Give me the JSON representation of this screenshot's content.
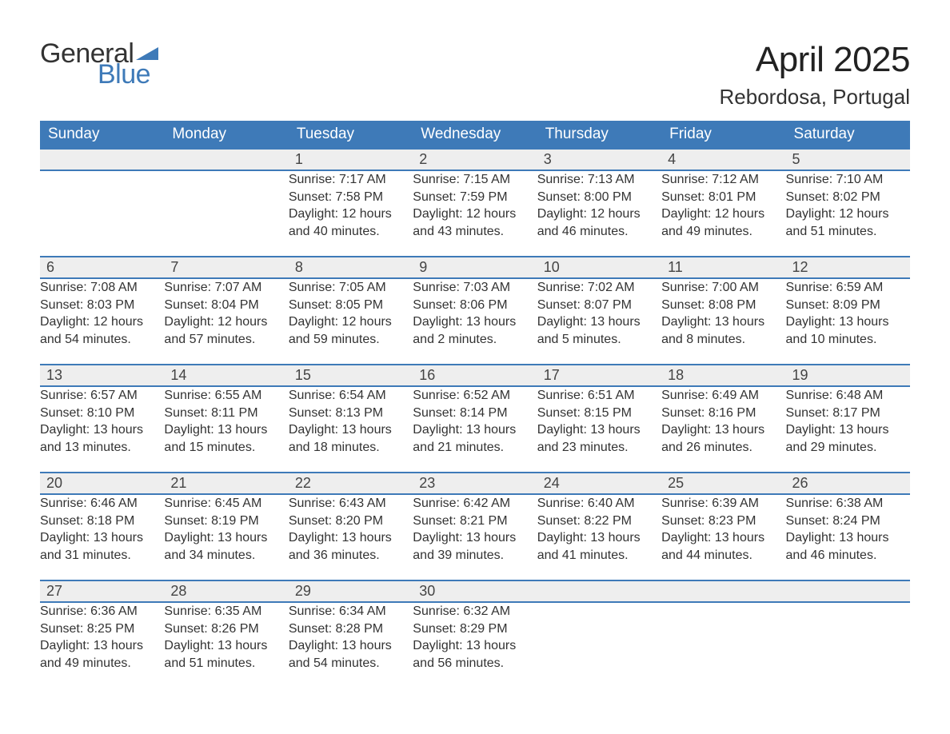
{
  "brand": {
    "word1": "General",
    "word2": "Blue",
    "accent_color": "#3e7ab8",
    "text_color": "#333333"
  },
  "header": {
    "month_title": "April 2025",
    "location": "Rebordosa, Portugal"
  },
  "colors": {
    "header_bg": "#3e7ab8",
    "header_text": "#ffffff",
    "daynum_bg": "#eeeeee",
    "body_text": "#333333",
    "rule": "#3e7ab8",
    "page_bg": "#ffffff"
  },
  "weekdays": [
    "Sunday",
    "Monday",
    "Tuesday",
    "Wednesday",
    "Thursday",
    "Friday",
    "Saturday"
  ],
  "weeks": [
    {
      "days": [
        {
          "num": "",
          "sunrise": "",
          "sunset": "",
          "daylight": ""
        },
        {
          "num": "",
          "sunrise": "",
          "sunset": "",
          "daylight": ""
        },
        {
          "num": "1",
          "sunrise": "Sunrise: 7:17 AM",
          "sunset": "Sunset: 7:58 PM",
          "daylight": "Daylight: 12 hours and 40 minutes."
        },
        {
          "num": "2",
          "sunrise": "Sunrise: 7:15 AM",
          "sunset": "Sunset: 7:59 PM",
          "daylight": "Daylight: 12 hours and 43 minutes."
        },
        {
          "num": "3",
          "sunrise": "Sunrise: 7:13 AM",
          "sunset": "Sunset: 8:00 PM",
          "daylight": "Daylight: 12 hours and 46 minutes."
        },
        {
          "num": "4",
          "sunrise": "Sunrise: 7:12 AM",
          "sunset": "Sunset: 8:01 PM",
          "daylight": "Daylight: 12 hours and 49 minutes."
        },
        {
          "num": "5",
          "sunrise": "Sunrise: 7:10 AM",
          "sunset": "Sunset: 8:02 PM",
          "daylight": "Daylight: 12 hours and 51 minutes."
        }
      ]
    },
    {
      "days": [
        {
          "num": "6",
          "sunrise": "Sunrise: 7:08 AM",
          "sunset": "Sunset: 8:03 PM",
          "daylight": "Daylight: 12 hours and 54 minutes."
        },
        {
          "num": "7",
          "sunrise": "Sunrise: 7:07 AM",
          "sunset": "Sunset: 8:04 PM",
          "daylight": "Daylight: 12 hours and 57 minutes."
        },
        {
          "num": "8",
          "sunrise": "Sunrise: 7:05 AM",
          "sunset": "Sunset: 8:05 PM",
          "daylight": "Daylight: 12 hours and 59 minutes."
        },
        {
          "num": "9",
          "sunrise": "Sunrise: 7:03 AM",
          "sunset": "Sunset: 8:06 PM",
          "daylight": "Daylight: 13 hours and 2 minutes."
        },
        {
          "num": "10",
          "sunrise": "Sunrise: 7:02 AM",
          "sunset": "Sunset: 8:07 PM",
          "daylight": "Daylight: 13 hours and 5 minutes."
        },
        {
          "num": "11",
          "sunrise": "Sunrise: 7:00 AM",
          "sunset": "Sunset: 8:08 PM",
          "daylight": "Daylight: 13 hours and 8 minutes."
        },
        {
          "num": "12",
          "sunrise": "Sunrise: 6:59 AM",
          "sunset": "Sunset: 8:09 PM",
          "daylight": "Daylight: 13 hours and 10 minutes."
        }
      ]
    },
    {
      "days": [
        {
          "num": "13",
          "sunrise": "Sunrise: 6:57 AM",
          "sunset": "Sunset: 8:10 PM",
          "daylight": "Daylight: 13 hours and 13 minutes."
        },
        {
          "num": "14",
          "sunrise": "Sunrise: 6:55 AM",
          "sunset": "Sunset: 8:11 PM",
          "daylight": "Daylight: 13 hours and 15 minutes."
        },
        {
          "num": "15",
          "sunrise": "Sunrise: 6:54 AM",
          "sunset": "Sunset: 8:13 PM",
          "daylight": "Daylight: 13 hours and 18 minutes."
        },
        {
          "num": "16",
          "sunrise": "Sunrise: 6:52 AM",
          "sunset": "Sunset: 8:14 PM",
          "daylight": "Daylight: 13 hours and 21 minutes."
        },
        {
          "num": "17",
          "sunrise": "Sunrise: 6:51 AM",
          "sunset": "Sunset: 8:15 PM",
          "daylight": "Daylight: 13 hours and 23 minutes."
        },
        {
          "num": "18",
          "sunrise": "Sunrise: 6:49 AM",
          "sunset": "Sunset: 8:16 PM",
          "daylight": "Daylight: 13 hours and 26 minutes."
        },
        {
          "num": "19",
          "sunrise": "Sunrise: 6:48 AM",
          "sunset": "Sunset: 8:17 PM",
          "daylight": "Daylight: 13 hours and 29 minutes."
        }
      ]
    },
    {
      "days": [
        {
          "num": "20",
          "sunrise": "Sunrise: 6:46 AM",
          "sunset": "Sunset: 8:18 PM",
          "daylight": "Daylight: 13 hours and 31 minutes."
        },
        {
          "num": "21",
          "sunrise": "Sunrise: 6:45 AM",
          "sunset": "Sunset: 8:19 PM",
          "daylight": "Daylight: 13 hours and 34 minutes."
        },
        {
          "num": "22",
          "sunrise": "Sunrise: 6:43 AM",
          "sunset": "Sunset: 8:20 PM",
          "daylight": "Daylight: 13 hours and 36 minutes."
        },
        {
          "num": "23",
          "sunrise": "Sunrise: 6:42 AM",
          "sunset": "Sunset: 8:21 PM",
          "daylight": "Daylight: 13 hours and 39 minutes."
        },
        {
          "num": "24",
          "sunrise": "Sunrise: 6:40 AM",
          "sunset": "Sunset: 8:22 PM",
          "daylight": "Daylight: 13 hours and 41 minutes."
        },
        {
          "num": "25",
          "sunrise": "Sunrise: 6:39 AM",
          "sunset": "Sunset: 8:23 PM",
          "daylight": "Daylight: 13 hours and 44 minutes."
        },
        {
          "num": "26",
          "sunrise": "Sunrise: 6:38 AM",
          "sunset": "Sunset: 8:24 PM",
          "daylight": "Daylight: 13 hours and 46 minutes."
        }
      ]
    },
    {
      "days": [
        {
          "num": "27",
          "sunrise": "Sunrise: 6:36 AM",
          "sunset": "Sunset: 8:25 PM",
          "daylight": "Daylight: 13 hours and 49 minutes."
        },
        {
          "num": "28",
          "sunrise": "Sunrise: 6:35 AM",
          "sunset": "Sunset: 8:26 PM",
          "daylight": "Daylight: 13 hours and 51 minutes."
        },
        {
          "num": "29",
          "sunrise": "Sunrise: 6:34 AM",
          "sunset": "Sunset: 8:28 PM",
          "daylight": "Daylight: 13 hours and 54 minutes."
        },
        {
          "num": "30",
          "sunrise": "Sunrise: 6:32 AM",
          "sunset": "Sunset: 8:29 PM",
          "daylight": "Daylight: 13 hours and 56 minutes."
        },
        {
          "num": "",
          "sunrise": "",
          "sunset": "",
          "daylight": ""
        },
        {
          "num": "",
          "sunrise": "",
          "sunset": "",
          "daylight": ""
        },
        {
          "num": "",
          "sunrise": "",
          "sunset": "",
          "daylight": ""
        }
      ]
    }
  ]
}
